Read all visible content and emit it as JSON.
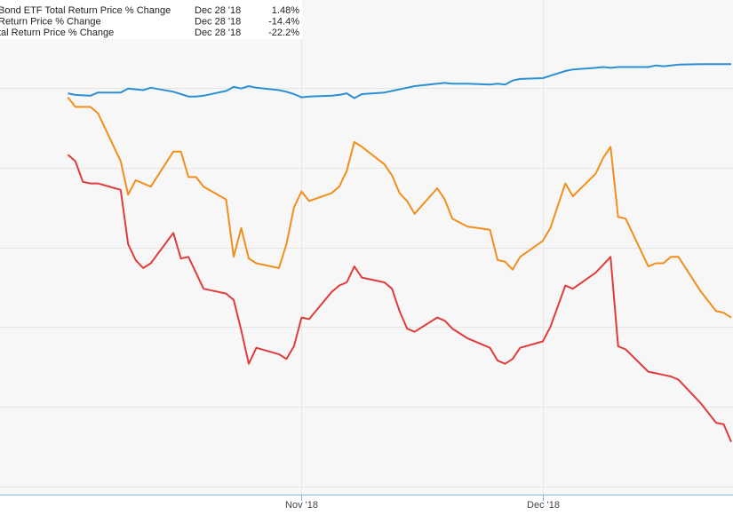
{
  "chart_data": {
    "type": "line",
    "legend": {
      "placement": "top-left",
      "columns": [
        "name",
        "date",
        "value"
      ]
    },
    "series": [
      {
        "name": "Bond ETF Total Return Price % Change",
        "legend_date": "Dec 28 '18",
        "legend_value": "1.48%",
        "color": "#2b8fd6",
        "points": [
          [
            "2018-10-01",
            -0.35
          ],
          [
            "2018-10-02",
            -0.45
          ],
          [
            "2018-10-03",
            -0.48
          ],
          [
            "2018-10-04",
            -0.5
          ],
          [
            "2018-10-05",
            -0.3
          ],
          [
            "2018-10-08",
            -0.3
          ],
          [
            "2018-10-09",
            -0.05
          ],
          [
            "2018-10-10",
            -0.1
          ],
          [
            "2018-10-11",
            -0.15
          ],
          [
            "2018-10-12",
            0.0
          ],
          [
            "2018-10-15",
            -0.25
          ],
          [
            "2018-10-16",
            -0.4
          ],
          [
            "2018-10-17",
            -0.55
          ],
          [
            "2018-10-18",
            -0.55
          ],
          [
            "2018-10-19",
            -0.5
          ],
          [
            "2018-10-22",
            -0.2
          ],
          [
            "2018-10-23",
            0.05
          ],
          [
            "2018-10-24",
            -0.05
          ],
          [
            "2018-10-25",
            0.1
          ],
          [
            "2018-10-26",
            0.0
          ],
          [
            "2018-10-29",
            -0.15
          ],
          [
            "2018-10-30",
            -0.25
          ],
          [
            "2018-10-31",
            -0.4
          ],
          [
            "2018-11-01",
            -0.6
          ],
          [
            "2018-11-02",
            -0.55
          ],
          [
            "2018-11-05",
            -0.5
          ],
          [
            "2018-11-06",
            -0.45
          ],
          [
            "2018-11-07",
            -0.35
          ],
          [
            "2018-11-08",
            -0.65
          ],
          [
            "2018-11-09",
            -0.4
          ],
          [
            "2018-11-12",
            -0.3
          ],
          [
            "2018-11-13",
            -0.2
          ],
          [
            "2018-11-14",
            -0.1
          ],
          [
            "2018-11-15",
            0.0
          ],
          [
            "2018-11-16",
            0.1
          ],
          [
            "2018-11-19",
            0.25
          ],
          [
            "2018-11-20",
            0.3
          ],
          [
            "2018-11-21",
            0.25
          ],
          [
            "2018-11-23",
            0.25
          ],
          [
            "2018-11-26",
            0.2
          ],
          [
            "2018-11-27",
            0.25
          ],
          [
            "2018-11-28",
            0.2
          ],
          [
            "2018-11-29",
            0.45
          ],
          [
            "2018-11-30",
            0.55
          ],
          [
            "2018-12-03",
            0.6
          ],
          [
            "2018-12-04",
            0.75
          ],
          [
            "2018-12-06",
            1.05
          ],
          [
            "2018-12-07",
            1.15
          ],
          [
            "2018-12-10",
            1.25
          ],
          [
            "2018-12-11",
            1.3
          ],
          [
            "2018-12-12",
            1.25
          ],
          [
            "2018-12-13",
            1.3
          ],
          [
            "2018-12-14",
            1.3
          ],
          [
            "2018-12-17",
            1.3
          ],
          [
            "2018-12-18",
            1.4
          ],
          [
            "2018-12-19",
            1.35
          ],
          [
            "2018-12-20",
            1.4
          ],
          [
            "2018-12-21",
            1.45
          ],
          [
            "2018-12-24",
            1.48
          ],
          [
            "2018-12-26",
            1.48
          ],
          [
            "2018-12-27",
            1.48
          ],
          [
            "2018-12-28",
            1.48
          ]
        ]
      },
      {
        "name": "Return Price % Change",
        "legend_date": "Dec 28 '18",
        "legend_value": "-14.4%",
        "color": "#f28e1c",
        "points": [
          [
            "2018-10-01",
            -0.6
          ],
          [
            "2018-10-02",
            -1.2
          ],
          [
            "2018-10-03",
            -1.2
          ],
          [
            "2018-10-04",
            -1.2
          ],
          [
            "2018-10-05",
            -1.6
          ],
          [
            "2018-10-08",
            -4.6
          ],
          [
            "2018-10-09",
            -6.7
          ],
          [
            "2018-10-10",
            -5.8
          ],
          [
            "2018-10-11",
            -6.0
          ],
          [
            "2018-10-12",
            -6.2
          ],
          [
            "2018-10-15",
            -4.0
          ],
          [
            "2018-10-16",
            -4.0
          ],
          [
            "2018-10-17",
            -5.6
          ],
          [
            "2018-10-18",
            -5.6
          ],
          [
            "2018-10-19",
            -6.2
          ],
          [
            "2018-10-22",
            -7.0
          ],
          [
            "2018-10-23",
            -10.6
          ],
          [
            "2018-10-24",
            -8.8
          ],
          [
            "2018-10-25",
            -10.7
          ],
          [
            "2018-10-26",
            -11.0
          ],
          [
            "2018-10-29",
            -11.3
          ],
          [
            "2018-10-30",
            -9.8
          ],
          [
            "2018-10-31",
            -7.5
          ],
          [
            "2018-11-01",
            -6.5
          ],
          [
            "2018-11-02",
            -7.1
          ],
          [
            "2018-11-05",
            -6.6
          ],
          [
            "2018-11-06",
            -6.2
          ],
          [
            "2018-11-07",
            -5.2
          ],
          [
            "2018-11-08",
            -3.4
          ],
          [
            "2018-11-09",
            -3.7
          ],
          [
            "2018-11-12",
            -4.8
          ],
          [
            "2018-11-13",
            -5.5
          ],
          [
            "2018-11-14",
            -6.6
          ],
          [
            "2018-11-15",
            -7.1
          ],
          [
            "2018-11-16",
            -7.9
          ],
          [
            "2018-11-19",
            -6.3
          ],
          [
            "2018-11-20",
            -7.0
          ],
          [
            "2018-11-21",
            -8.2
          ],
          [
            "2018-11-23",
            -8.7
          ],
          [
            "2018-11-26",
            -8.9
          ],
          [
            "2018-11-27",
            -10.8
          ],
          [
            "2018-11-28",
            -10.9
          ],
          [
            "2018-11-29",
            -11.4
          ],
          [
            "2018-11-30",
            -10.6
          ],
          [
            "2018-12-03",
            -9.6
          ],
          [
            "2018-12-04",
            -8.8
          ],
          [
            "2018-12-06",
            -6.0
          ],
          [
            "2018-12-07",
            -6.8
          ],
          [
            "2018-12-10",
            -5.4
          ],
          [
            "2018-12-11",
            -4.4
          ],
          [
            "2018-12-12",
            -3.7
          ],
          [
            "2018-12-13",
            -8.1
          ],
          [
            "2018-12-14",
            -8.2
          ],
          [
            "2018-12-17",
            -11.2
          ],
          [
            "2018-12-18",
            -11.0
          ],
          [
            "2018-12-19",
            -11.0
          ],
          [
            "2018-12-20",
            -10.6
          ],
          [
            "2018-12-21",
            -10.6
          ],
          [
            "2018-12-24",
            -12.8
          ],
          [
            "2018-12-26",
            -14.0
          ],
          [
            "2018-12-27",
            -14.1
          ],
          [
            "2018-12-28",
            -14.4
          ]
        ]
      },
      {
        "name": "tal Return Price % Change",
        "legend_date": "Dec 28 '18",
        "legend_value": "-22.2%",
        "color": "#e03c3c",
        "points": [
          [
            "2018-10-01",
            -4.2
          ],
          [
            "2018-10-02",
            -4.6
          ],
          [
            "2018-10-03",
            -5.9
          ],
          [
            "2018-10-04",
            -6.0
          ],
          [
            "2018-10-05",
            -6.0
          ],
          [
            "2018-10-08",
            -6.4
          ],
          [
            "2018-10-09",
            -9.8
          ],
          [
            "2018-10-10",
            -10.8
          ],
          [
            "2018-10-11",
            -11.3
          ],
          [
            "2018-10-12",
            -11.0
          ],
          [
            "2018-10-15",
            -9.1
          ],
          [
            "2018-10-16",
            -10.7
          ],
          [
            "2018-10-17",
            -10.6
          ],
          [
            "2018-10-18",
            -11.6
          ],
          [
            "2018-10-19",
            -12.6
          ],
          [
            "2018-10-22",
            -12.9
          ],
          [
            "2018-10-23",
            -13.3
          ],
          [
            "2018-10-24",
            -15.2
          ],
          [
            "2018-10-25",
            -17.3
          ],
          [
            "2018-10-26",
            -16.3
          ],
          [
            "2018-10-29",
            -16.7
          ],
          [
            "2018-10-30",
            -17.0
          ],
          [
            "2018-10-31",
            -16.2
          ],
          [
            "2018-11-01",
            -14.4
          ],
          [
            "2018-11-02",
            -14.5
          ],
          [
            "2018-11-05",
            -12.8
          ],
          [
            "2018-11-06",
            -12.4
          ],
          [
            "2018-11-07",
            -12.2
          ],
          [
            "2018-11-08",
            -11.2
          ],
          [
            "2018-11-09",
            -11.9
          ],
          [
            "2018-11-12",
            -12.2
          ],
          [
            "2018-11-13",
            -12.6
          ],
          [
            "2018-11-14",
            -14.0
          ],
          [
            "2018-11-15",
            -15.1
          ],
          [
            "2018-11-16",
            -15.3
          ],
          [
            "2018-11-19",
            -14.4
          ],
          [
            "2018-11-20",
            -14.6
          ],
          [
            "2018-11-21",
            -15.1
          ],
          [
            "2018-11-23",
            -15.7
          ],
          [
            "2018-11-26",
            -16.3
          ],
          [
            "2018-11-27",
            -17.1
          ],
          [
            "2018-11-28",
            -17.3
          ],
          [
            "2018-11-29",
            -17.0
          ],
          [
            "2018-11-30",
            -16.3
          ],
          [
            "2018-12-03",
            -15.9
          ],
          [
            "2018-12-04",
            -15.0
          ],
          [
            "2018-12-06",
            -12.4
          ],
          [
            "2018-12-07",
            -12.6
          ],
          [
            "2018-12-10",
            -11.6
          ],
          [
            "2018-12-11",
            -11.1
          ],
          [
            "2018-12-12",
            -10.6
          ],
          [
            "2018-12-13",
            -16.2
          ],
          [
            "2018-12-14",
            -16.4
          ],
          [
            "2018-12-17",
            -17.8
          ],
          [
            "2018-12-18",
            -17.9
          ],
          [
            "2018-12-19",
            -18.0
          ],
          [
            "2018-12-20",
            -18.1
          ],
          [
            "2018-12-21",
            -18.3
          ],
          [
            "2018-12-24",
            -19.8
          ],
          [
            "2018-12-26",
            -21.0
          ],
          [
            "2018-12-27",
            -21.1
          ],
          [
            "2018-12-28",
            -22.2
          ]
        ]
      }
    ],
    "x_axis": {
      "tick_labels": [
        {
          "label": "Nov '18",
          "date": "2018-11-01"
        },
        {
          "label": "Dec '18",
          "date": "2018-12-03"
        }
      ],
      "range": [
        "2018-09-22",
        "2018-12-28"
      ]
    },
    "y_axis": {
      "range": [
        -25.5,
        5.5
      ],
      "gridlines": [
        0,
        -5,
        -10,
        -15,
        -20,
        -25
      ],
      "tick_labels_visible": false
    },
    "grid": true,
    "plot_background": "#f7f7f7",
    "axis_color": "#7cb5ec"
  }
}
